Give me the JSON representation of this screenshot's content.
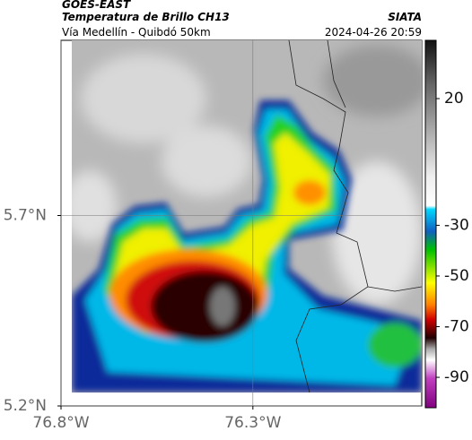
{
  "header": {
    "source": "GOES-EAST",
    "product": "Temperatura de Brillo CH13",
    "location": "Vía Medellín - Quibdó 50km",
    "agency": "SIATA",
    "timestamp": "2024-04-26 20:59"
  },
  "map": {
    "xlim": [
      -76.8,
      -75.86
    ],
    "ylim": [
      5.2,
      6.16
    ],
    "xticks": [
      {
        "value": -76.8,
        "label": "76.8°W"
      },
      {
        "value": -76.3,
        "label": "76.3°W"
      }
    ],
    "yticks": [
      {
        "value": 5.2,
        "label": "5.2°N"
      },
      {
        "value": 5.7,
        "label": "5.7°N"
      }
    ],
    "grid": true
  },
  "colorbar": {
    "lim": [
      -102,
      43
    ],
    "ticks": [
      20,
      -30,
      -50,
      -70,
      -90
    ]
  }
}
